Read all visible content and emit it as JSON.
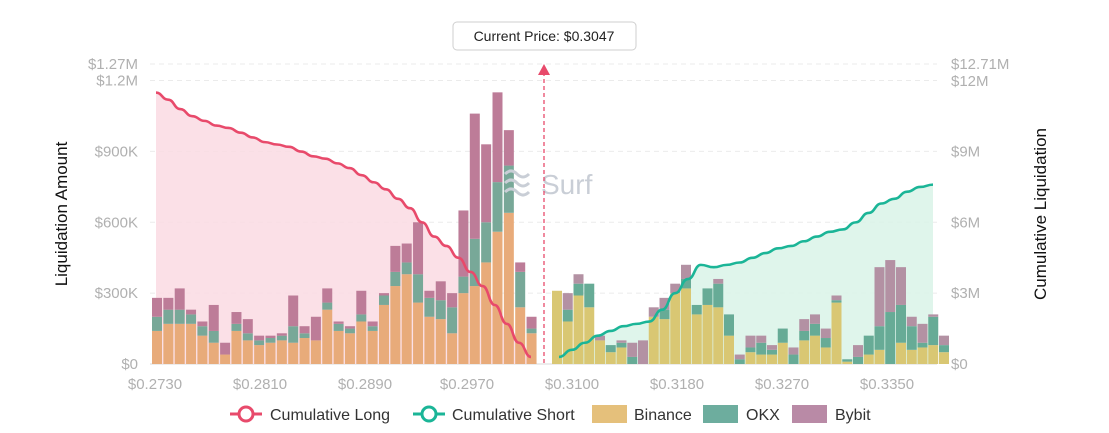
{
  "chart_data": {
    "type": "bar",
    "stacked": true,
    "current_price_label": "Current Price: $0.3047",
    "current_price": 0.3047,
    "watermark": "Surf",
    "ylabel": "Liquidation Amount",
    "y2label": "Cumulative Liquidation",
    "ylim": [
      0,
      1270000
    ],
    "y2lim": [
      0,
      12710000
    ],
    "y_ticks": [
      "$0",
      "$300K",
      "$600K",
      "$900K",
      "$1.2M",
      "$1.27M"
    ],
    "y2_ticks": [
      "$0",
      "$3M",
      "$6M",
      "$9M",
      "$12M",
      "$12.71M"
    ],
    "x_tick_labels": [
      "$0.2730",
      "$0.2810",
      "$0.2890",
      "$0.2970",
      "$0.3100",
      "$0.3180",
      "$0.3270",
      "$0.3350"
    ],
    "grid": true,
    "legend_position": "bottom",
    "legend": [
      {
        "name": "Cumulative Long",
        "kind": "line",
        "color": "#e84a6b"
      },
      {
        "name": "Cumulative Short",
        "kind": "line",
        "color": "#1bb597"
      },
      {
        "name": "Binance",
        "kind": "bar",
        "color": "#e5c07b"
      },
      {
        "name": "OKX",
        "kind": "bar",
        "color": "#6dad9e"
      },
      {
        "name": "Bybit",
        "kind": "bar",
        "color": "#b98aa6"
      }
    ],
    "long_colors": {
      "binance": "#e8ab7a",
      "okx": "#78a898",
      "bybit": "#bd7c98",
      "line": "#e84a6b",
      "fill": "#fadbe3"
    },
    "short_colors": {
      "binance": "#d9c773",
      "okx": "#67ab96",
      "bybit": "#b391a3",
      "line": "#1bb597",
      "fill": "#d9f3e7"
    },
    "long_series": {
      "binance": [
        140000,
        170000,
        170000,
        170000,
        120000,
        90000,
        40000,
        140000,
        100000,
        80000,
        90000,
        100000,
        90000,
        110000,
        100000,
        230000,
        140000,
        130000,
        180000,
        140000,
        250000,
        330000,
        380000,
        260000,
        200000,
        190000,
        130000,
        300000,
        330000,
        430000,
        560000,
        640000,
        240000,
        130000
      ],
      "okx": [
        60000,
        60000,
        60000,
        40000,
        40000,
        50000,
        0,
        30000,
        30000,
        20000,
        20000,
        20000,
        70000,
        20000,
        0,
        30000,
        30000,
        20000,
        30000,
        20000,
        40000,
        60000,
        50000,
        120000,
        80000,
        80000,
        110000,
        70000,
        200000,
        170000,
        210000,
        200000,
        150000,
        20000
      ],
      "bybit": [
        80000,
        50000,
        90000,
        20000,
        20000,
        110000,
        50000,
        50000,
        60000,
        20000,
        10000,
        10000,
        130000,
        30000,
        100000,
        60000,
        10000,
        10000,
        100000,
        20000,
        10000,
        110000,
        80000,
        220000,
        30000,
        80000,
        60000,
        280000,
        530000,
        330000,
        380000,
        150000,
        40000,
        50000
      ]
    },
    "short_series": {
      "binance": [
        310000,
        180000,
        290000,
        240000,
        100000,
        50000,
        70000,
        0,
        0,
        200000,
        190000,
        300000,
        320000,
        210000,
        250000,
        240000,
        120000,
        0,
        50000,
        40000,
        40000,
        90000,
        0,
        100000,
        120000,
        70000,
        260000,
        10000,
        0,
        40000,
        60000,
        0,
        90000,
        60000,
        70000,
        80000,
        50000
      ],
      "okx": [
        0,
        50000,
        50000,
        100000,
        0,
        30000,
        20000,
        30000,
        0,
        0,
        40000,
        0,
        40000,
        40000,
        70000,
        100000,
        90000,
        20000,
        20000,
        50000,
        20000,
        60000,
        40000,
        40000,
        50000,
        40000,
        10000,
        10000,
        30000,
        80000,
        100000,
        220000,
        160000,
        100000,
        20000,
        120000,
        30000
      ],
      "bybit": [
        0,
        70000,
        40000,
        0,
        20000,
        0,
        10000,
        60000,
        100000,
        40000,
        50000,
        40000,
        60000,
        0,
        0,
        20000,
        0,
        20000,
        50000,
        30000,
        20000,
        0,
        30000,
        50000,
        40000,
        40000,
        20000,
        0,
        50000,
        0,
        250000,
        220000,
        160000,
        40000,
        80000,
        10000,
        40000
      ]
    },
    "cumulative_long": [
      11500000,
      11200000,
      10800000,
      10500000,
      10300000,
      10100000,
      10000000,
      9800000,
      9600000,
      9400000,
      9300000,
      9200000,
      9000000,
      8800000,
      8700000,
      8500000,
      8300000,
      8000000,
      7700000,
      7400000,
      7000000,
      6600000,
      6000000,
      5400000,
      5000000,
      4500000,
      3900000,
      3300000,
      2500000,
      1700000,
      900000,
      300000
    ],
    "cumulative_short": [
      300000,
      600000,
      900000,
      1200000,
      1400000,
      1600000,
      1700000,
      1800000,
      2300000,
      3000000,
      3600000,
      4200000,
      4100000,
      4200000,
      4300000,
      4500000,
      4700000,
      4900000,
      5000000,
      5200000,
      5400000,
      5600000,
      5700000,
      6000000,
      6400000,
      6800000,
      7000000,
      7300000,
      7500000,
      7600000
    ]
  }
}
